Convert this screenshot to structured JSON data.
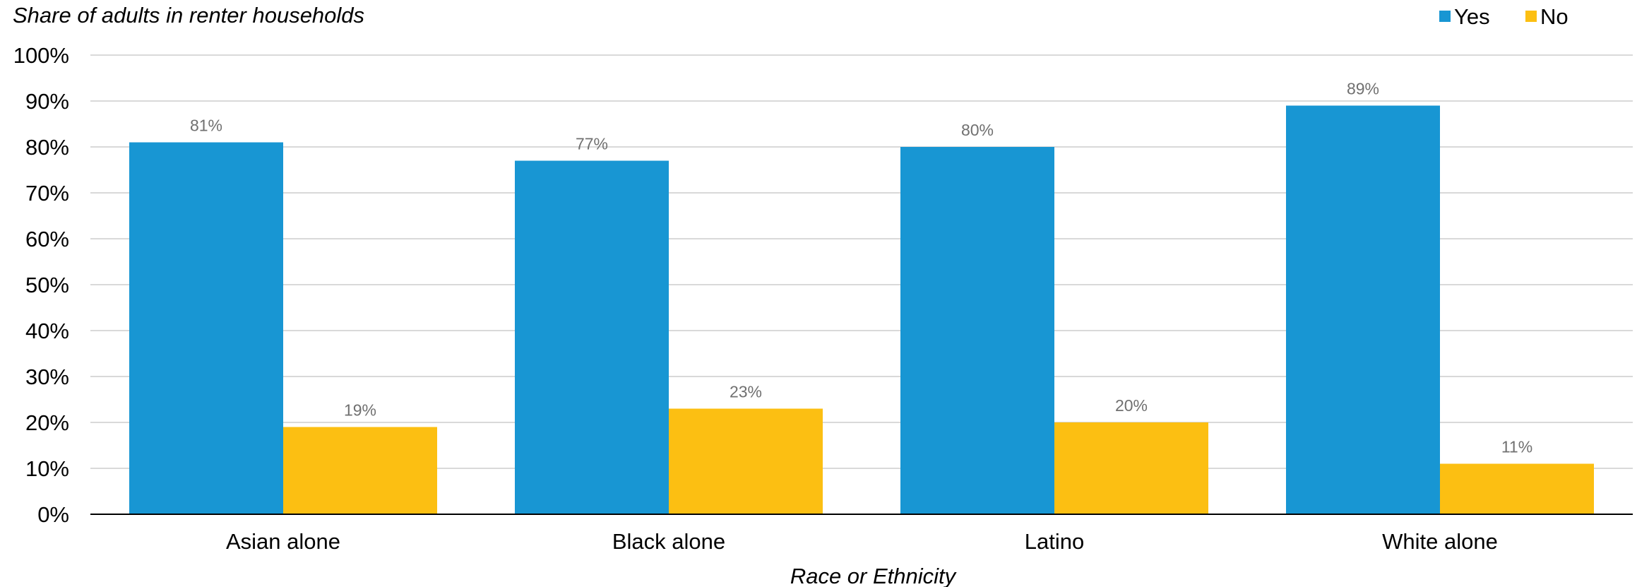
{
  "chart_data": {
    "type": "bar",
    "title": "",
    "ylabel": "Share of adults in renter households",
    "xlabel": "Race or Ethnicity",
    "categories": [
      "Asian alone",
      "Black alone",
      "Latino",
      "White alone"
    ],
    "series": [
      {
        "name": "Yes",
        "color": "#1896D3",
        "values": [
          81,
          77,
          80,
          89
        ],
        "labels": [
          "81%",
          "77%",
          "80%",
          "89%"
        ]
      },
      {
        "name": "No",
        "color": "#FCBF12",
        "values": [
          19,
          23,
          20,
          11
        ],
        "labels": [
          "19%",
          "23%",
          "20%",
          "11%"
        ]
      }
    ],
    "ylim": [
      0,
      100
    ],
    "yticks": [
      "0%",
      "10%",
      "20%",
      "30%",
      "40%",
      "50%",
      "60%",
      "70%",
      "80%",
      "90%",
      "100%"
    ],
    "grid": true,
    "legend_position": "top-right"
  }
}
